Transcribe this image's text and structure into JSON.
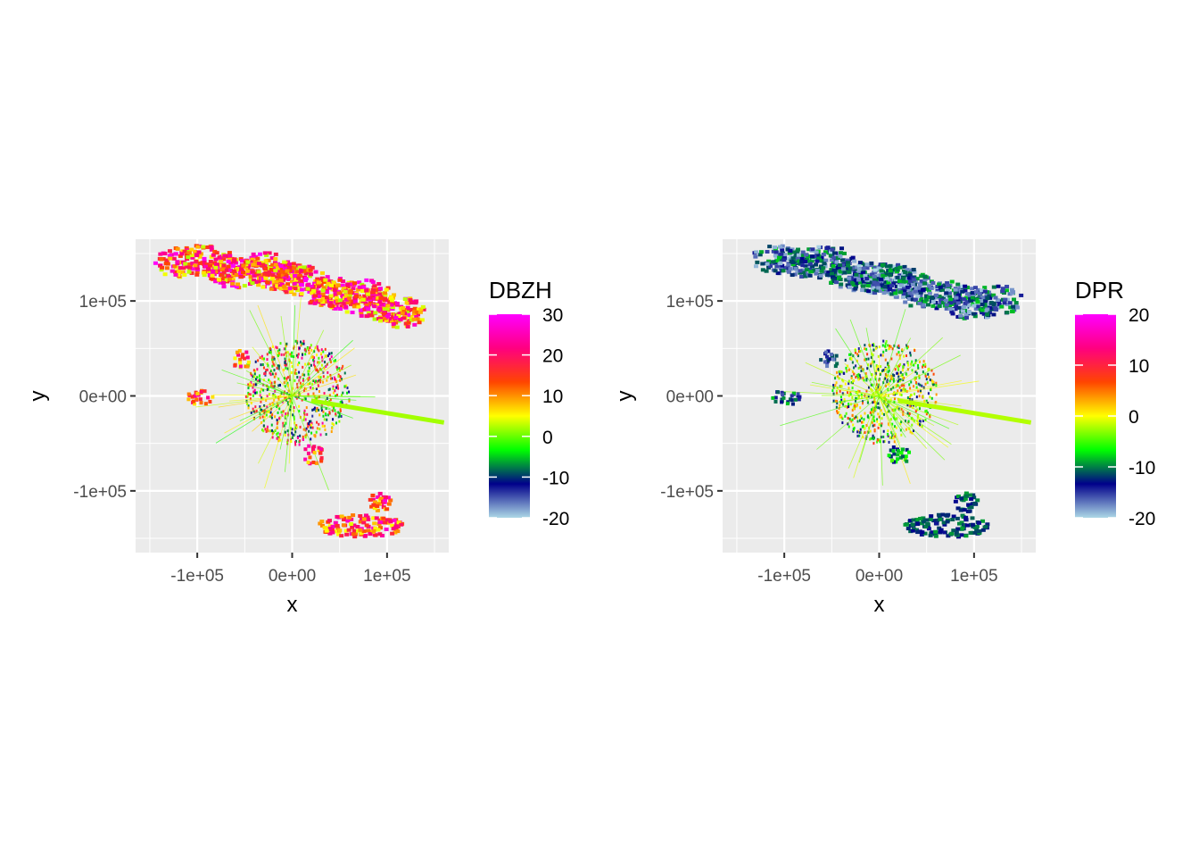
{
  "chart_data": [
    {
      "type": "heatmap",
      "title": "",
      "xlabel": "x",
      "ylabel": "y",
      "xlim": [
        -165000,
        165000
      ],
      "ylim": [
        -165000,
        165000
      ],
      "x_ticks": [
        -100000,
        0,
        100000
      ],
      "x_tick_labels": [
        "-1e+05",
        "0e+00",
        "1e+05"
      ],
      "y_ticks": [
        -100000,
        0,
        100000
      ],
      "y_tick_labels": [
        "-1e+05",
        "0e+00",
        "1e+05"
      ],
      "grid": true,
      "legend": {
        "title": "DBZH",
        "placement": "right",
        "range": [
          -20,
          30
        ],
        "ticks": [
          30,
          20,
          10,
          0,
          -10,
          -20
        ],
        "tick_labels": [
          "30",
          "20",
          "10",
          "0",
          "-10",
          "-20"
        ],
        "colors": [
          "#add8e6",
          "#00008b",
          "#00ff00",
          "#ffff00",
          "#ff4500",
          "#ff0080",
          "#ff00ff"
        ]
      }
    },
    {
      "type": "heatmap",
      "title": "",
      "xlabel": "x",
      "ylabel": "y",
      "xlim": [
        -165000,
        165000
      ],
      "ylim": [
        -165000,
        165000
      ],
      "x_ticks": [
        -100000,
        0,
        100000
      ],
      "x_tick_labels": [
        "-1e+05",
        "0e+00",
        "1e+05"
      ],
      "y_ticks": [
        -100000,
        0,
        100000
      ],
      "y_tick_labels": [
        "-1e+05",
        "0e+00",
        "1e+05"
      ],
      "grid": true,
      "legend": {
        "title": "DPR",
        "placement": "right",
        "range": [
          -20,
          20
        ],
        "ticks": [
          20,
          10,
          0,
          -10,
          -20
        ],
        "tick_labels": [
          "20",
          "10",
          "0",
          "-10",
          "-20"
        ],
        "colors": [
          "#add8e6",
          "#00008b",
          "#00ff00",
          "#ffff00",
          "#ff4500",
          "#ff0080",
          "#ff00ff"
        ]
      }
    }
  ]
}
